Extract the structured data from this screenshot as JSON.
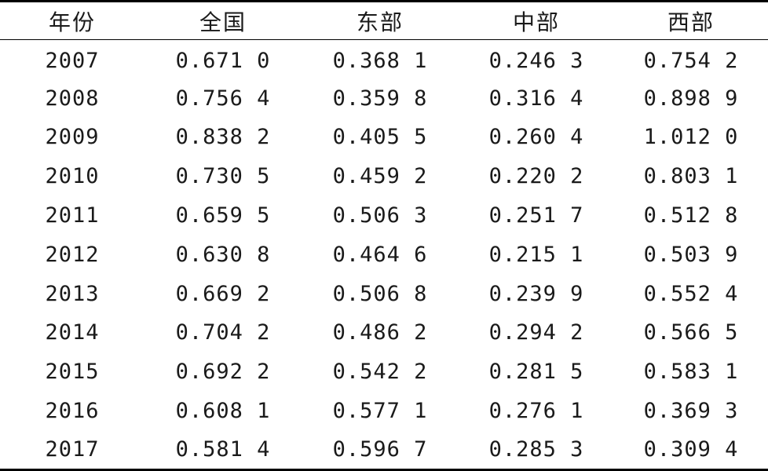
{
  "table": {
    "headers": [
      "年份",
      "全国",
      "东部",
      "中部",
      "西部"
    ],
    "rows": [
      [
        "2007",
        "0.671 0",
        "0.368 1",
        "0.246 3",
        "0.754 2"
      ],
      [
        "2008",
        "0.756 4",
        "0.359 8",
        "0.316 4",
        "0.898 9"
      ],
      [
        "2009",
        "0.838 2",
        "0.405 5",
        "0.260 4",
        "1.012 0"
      ],
      [
        "2010",
        "0.730 5",
        "0.459 2",
        "0.220 2",
        "0.803 1"
      ],
      [
        "2011",
        "0.659 5",
        "0.506 3",
        "0.251 7",
        "0.512 8"
      ],
      [
        "2012",
        "0.630 8",
        "0.464 6",
        "0.215 1",
        "0.503 9"
      ],
      [
        "2013",
        "0.669 2",
        "0.506 8",
        "0.239 9",
        "0.552 4"
      ],
      [
        "2014",
        "0.704 2",
        "0.486 2",
        "0.294 2",
        "0.566 5"
      ],
      [
        "2015",
        "0.692 2",
        "0.542 2",
        "0.281 5",
        "0.583 1"
      ],
      [
        "2016",
        "0.608 1",
        "0.577 1",
        "0.276 1",
        "0.369 3"
      ],
      [
        "2017",
        "0.581 4",
        "0.596 7",
        "0.285 3",
        "0.309 4"
      ]
    ]
  }
}
